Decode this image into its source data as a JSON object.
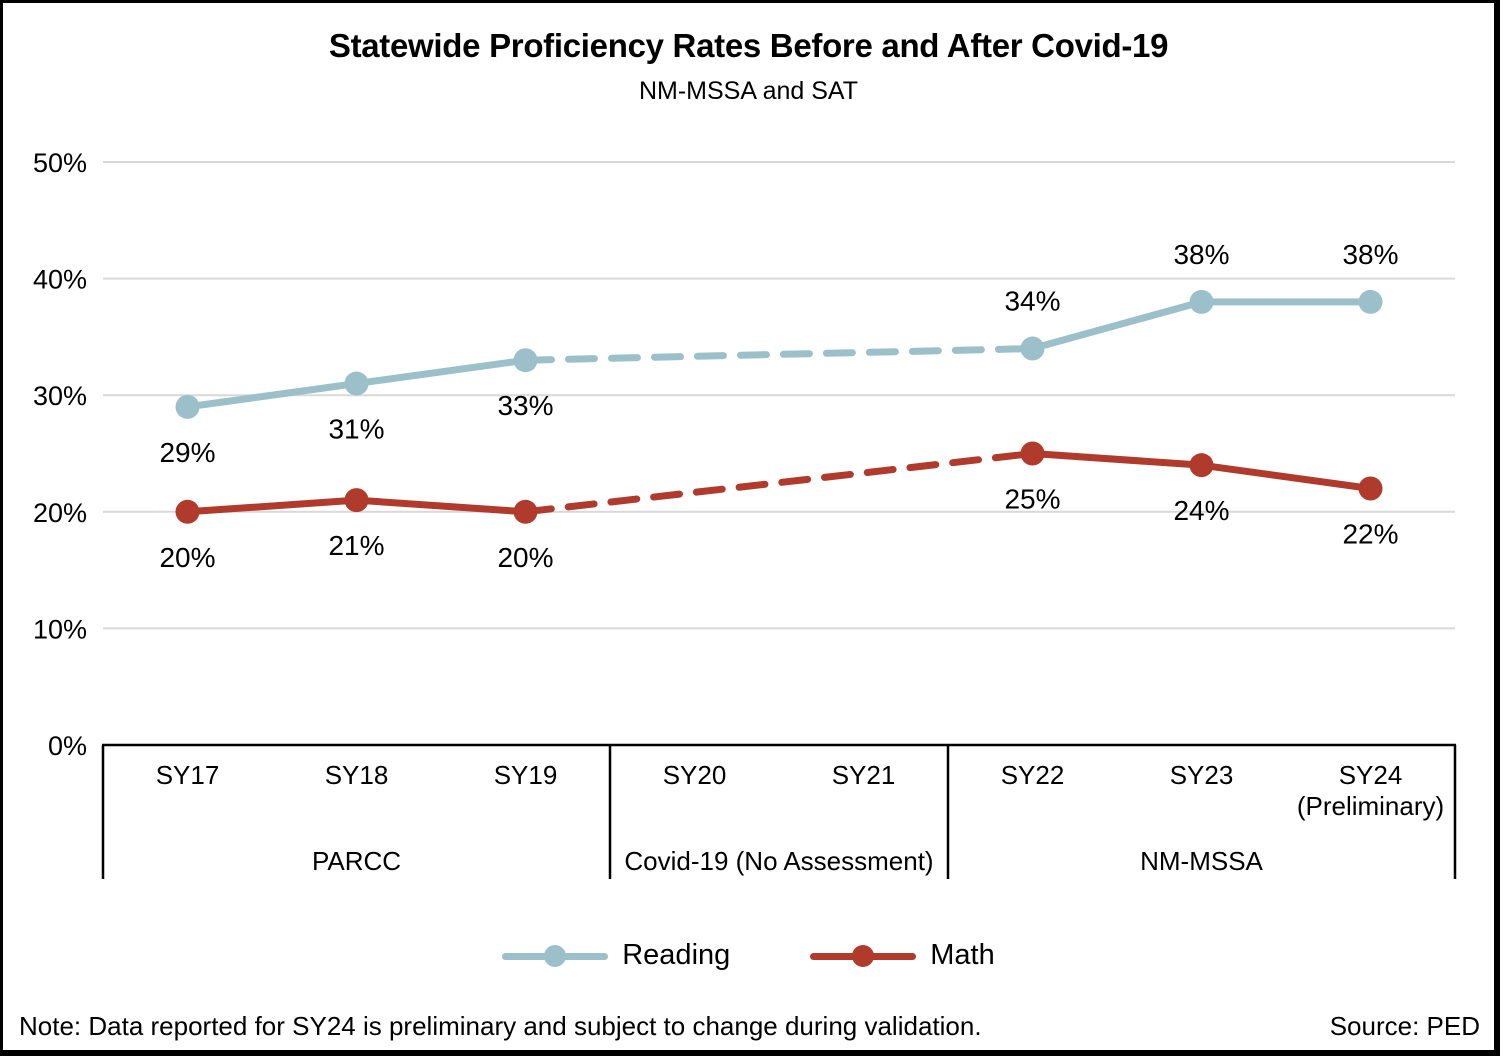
{
  "figure": {
    "title": "Statewide Proficiency Rates Before and After Covid-19",
    "subtitle": "NM-MSSA and SAT",
    "note": "Note: Data reported for SY24 is preliminary and subject to change during validation.",
    "source": "Source: PED"
  },
  "colors": {
    "reading": "#9BC0C9",
    "math": "#B03A2B",
    "grid": "#D9D9D9",
    "axis": "#000000"
  },
  "chart_data": {
    "type": "line",
    "title": "Statewide Proficiency Rates Before and After Covid-19",
    "subtitle": "NM-MSSA and SAT",
    "categories": [
      "SY17",
      "SY18",
      "SY19",
      "SY20",
      "SY21",
      "SY22",
      "SY23",
      "SY24"
    ],
    "category_sublabels": [
      null,
      null,
      null,
      null,
      null,
      null,
      null,
      "(Preliminary)"
    ],
    "groups": [
      {
        "label": "PARCC",
        "start": 0,
        "end": 3
      },
      {
        "label": "Covid-19 (No Assessment)",
        "start": 3,
        "end": 5
      },
      {
        "label": "NM-MSSA",
        "start": 5,
        "end": 8
      }
    ],
    "series": [
      {
        "name": "Reading",
        "color_key": "reading",
        "values": [
          29,
          31,
          33,
          null,
          null,
          34,
          38,
          38
        ],
        "labels": [
          "29%",
          "31%",
          "33%",
          null,
          null,
          "34%",
          "38%",
          "38%"
        ],
        "label_side": [
          "below",
          "below",
          "below",
          null,
          null,
          "above",
          "above",
          "above"
        ]
      },
      {
        "name": "Math",
        "color_key": "math",
        "values": [
          20,
          21,
          20,
          null,
          null,
          25,
          24,
          22
        ],
        "labels": [
          "20%",
          "21%",
          "20%",
          null,
          null,
          "25%",
          "24%",
          "22%"
        ],
        "label_side": [
          "below",
          "below",
          "below",
          null,
          null,
          "below",
          "below",
          "below"
        ]
      }
    ],
    "gap_style": "dashed",
    "y_axis": {
      "min": 0,
      "max": 50,
      "step": 10,
      "tick_labels": [
        "0%",
        "10%",
        "20%",
        "30%",
        "40%",
        "50%"
      ]
    },
    "grid": true,
    "legend_position": "bottom"
  }
}
